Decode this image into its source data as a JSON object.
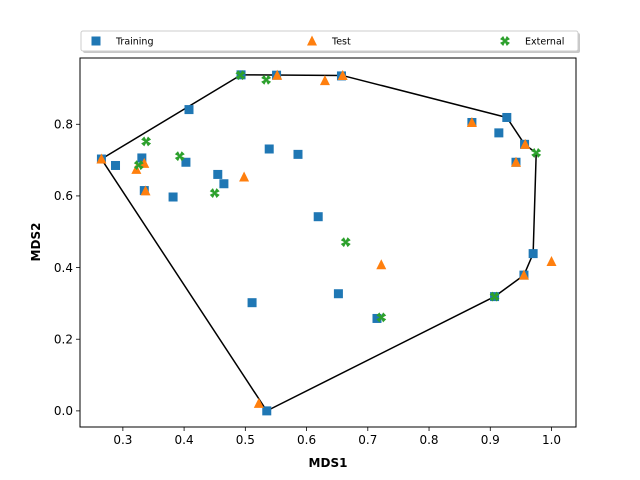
{
  "chart_data": {
    "type": "scatter",
    "xlabel": "MDS1",
    "ylabel": "MDS2",
    "xlim": [
      0.23,
      1.04
    ],
    "ylim": [
      -0.045,
      0.985
    ],
    "xticks": [
      "0.3",
      "0.4",
      "0.5",
      "0.6",
      "0.7",
      "0.8",
      "0.9",
      "1.0"
    ],
    "yticks": [
      "0.0",
      "0.2",
      "0.4",
      "0.6",
      "0.8"
    ],
    "xtick_values": [
      0.3,
      0.4,
      0.5,
      0.6,
      0.7,
      0.8,
      0.9,
      1.0
    ],
    "ytick_values": [
      0.0,
      0.2,
      0.4,
      0.6,
      0.8
    ],
    "grid": false,
    "legend_position": "top",
    "series": [
      {
        "name": "Training",
        "marker": "square",
        "color": "#1f77b4",
        "points": [
          [
            0.265,
            0.703
          ],
          [
            0.288,
            0.685
          ],
          [
            0.331,
            0.706
          ],
          [
            0.335,
            0.615
          ],
          [
            0.382,
            0.597
          ],
          [
            0.403,
            0.694
          ],
          [
            0.408,
            0.841
          ],
          [
            0.455,
            0.66
          ],
          [
            0.465,
            0.634
          ],
          [
            0.493,
            0.938
          ],
          [
            0.511,
            0.302
          ],
          [
            0.535,
            0.0
          ],
          [
            0.539,
            0.731
          ],
          [
            0.551,
            0.937
          ],
          [
            0.586,
            0.716
          ],
          [
            0.619,
            0.542
          ],
          [
            0.652,
            0.327
          ],
          [
            0.657,
            0.935
          ],
          [
            0.715,
            0.258
          ],
          [
            0.87,
            0.805
          ],
          [
            0.907,
            0.319
          ],
          [
            0.914,
            0.776
          ],
          [
            0.927,
            0.819
          ],
          [
            0.942,
            0.694
          ],
          [
            0.955,
            0.379
          ],
          [
            0.956,
            0.744
          ],
          [
            0.97,
            0.439
          ]
        ]
      },
      {
        "name": "Test",
        "marker": "triangle",
        "color": "#ff7f0e",
        "points": [
          [
            0.265,
            0.703
          ],
          [
            0.322,
            0.674
          ],
          [
            0.335,
            0.691
          ],
          [
            0.337,
            0.614
          ],
          [
            0.498,
            0.653
          ],
          [
            0.522,
            0.021
          ],
          [
            0.552,
            0.937
          ],
          [
            0.63,
            0.922
          ],
          [
            0.659,
            0.936
          ],
          [
            0.722,
            0.408
          ],
          [
            0.87,
            0.805
          ],
          [
            0.942,
            0.694
          ],
          [
            0.955,
            0.379
          ],
          [
            0.957,
            0.744
          ],
          [
            1.0,
            0.417
          ]
        ]
      },
      {
        "name": "External",
        "marker": "x",
        "color": "#2ca02c",
        "points": [
          [
            0.326,
            0.686
          ],
          [
            0.338,
            0.752
          ],
          [
            0.393,
            0.711
          ],
          [
            0.45,
            0.608
          ],
          [
            0.492,
            0.937
          ],
          [
            0.534,
            0.924
          ],
          [
            0.664,
            0.471
          ],
          [
            0.722,
            0.261
          ],
          [
            0.907,
            0.319
          ],
          [
            0.975,
            0.72
          ]
        ]
      }
    ],
    "hull": {
      "color": "#000000",
      "points": [
        [
          0.535,
          0.0
        ],
        [
          0.907,
          0.319
        ],
        [
          0.955,
          0.379
        ],
        [
          0.97,
          0.439
        ],
        [
          0.975,
          0.72
        ],
        [
          0.956,
          0.744
        ],
        [
          0.927,
          0.819
        ],
        [
          0.659,
          0.936
        ],
        [
          0.493,
          0.938
        ],
        [
          0.265,
          0.703
        ],
        [
          0.535,
          0.0
        ]
      ]
    }
  }
}
